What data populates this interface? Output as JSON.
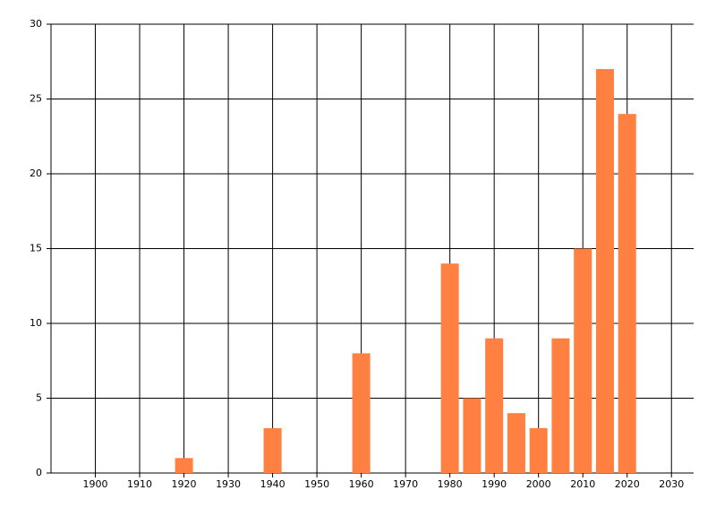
{
  "chart_data": {
    "type": "bar",
    "x": [
      1920,
      1940,
      1960,
      1980,
      1985,
      1990,
      1995,
      2000,
      2005,
      2010,
      2015,
      2020
    ],
    "values": [
      1,
      3,
      8,
      14,
      5,
      9,
      4,
      3,
      9,
      15,
      27,
      24
    ],
    "color": "#ff8040",
    "xlim": [
      1890,
      2035
    ],
    "xticks": [
      1900,
      1910,
      1920,
      1930,
      1940,
      1950,
      1960,
      1970,
      1980,
      1990,
      2000,
      2010,
      2020,
      2030
    ],
    "ylim": [
      0,
      30
    ],
    "yticks": [
      0,
      5,
      10,
      15,
      20,
      25,
      30
    ],
    "grid": true
  }
}
